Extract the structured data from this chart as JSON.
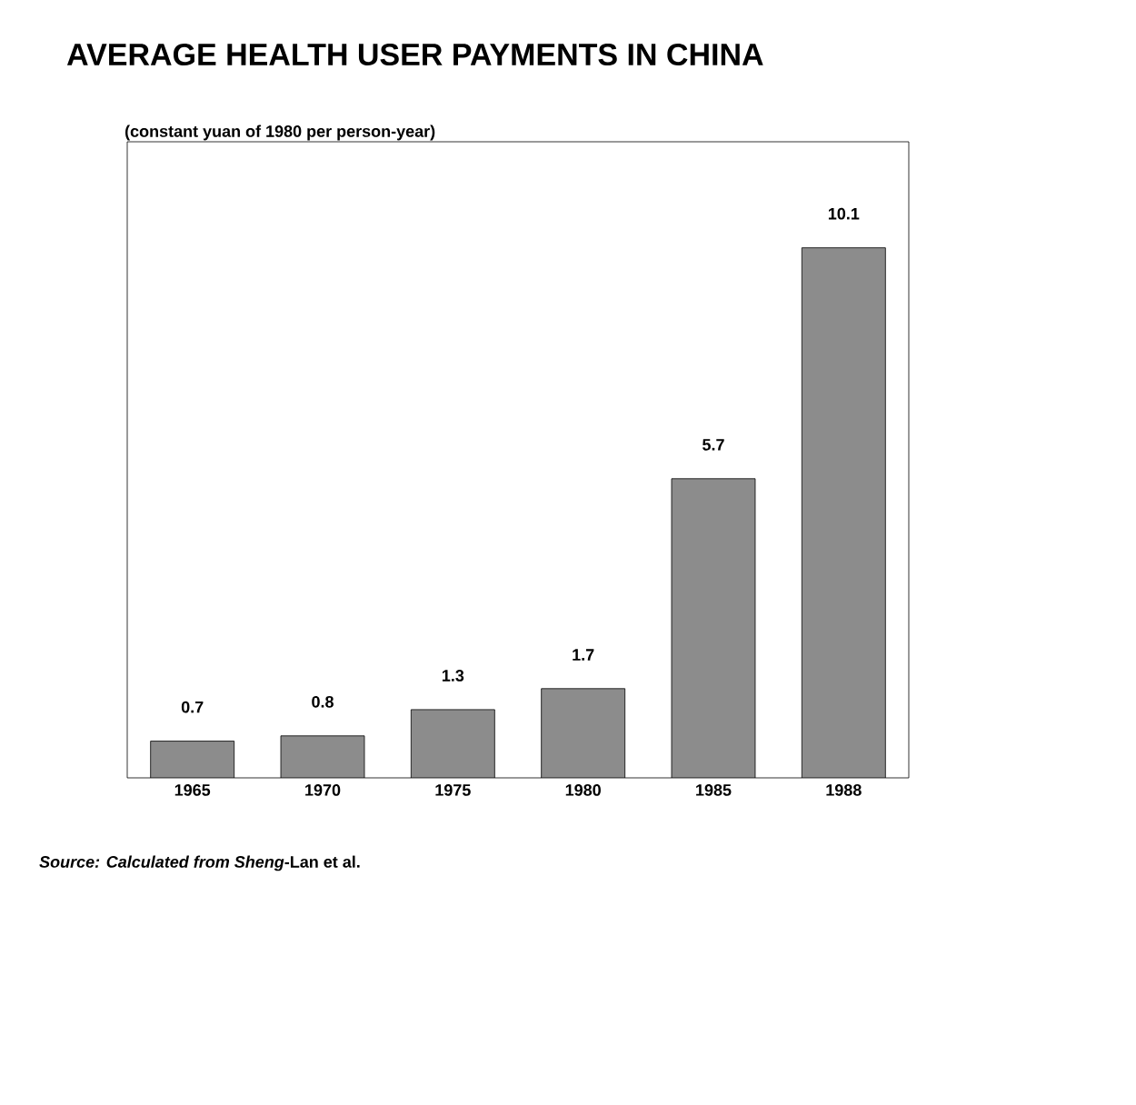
{
  "chart_data": {
    "type": "bar",
    "title": "AVERAGE HEALTH USER PAYMENTS IN CHINA",
    "subtitle": "(constant yuan of 1980 per person-year)",
    "categories": [
      "1965",
      "1970",
      "1975",
      "1980",
      "1985",
      "1988"
    ],
    "values": [
      0.7,
      0.8,
      1.3,
      1.7,
      5.7,
      10.1
    ],
    "color": "#8c8c8c",
    "data_labels": true,
    "tick_labels": "x",
    "annotations": [
      "*Source: Calculated from Sheng*-Lan et al."
    ]
  }
}
